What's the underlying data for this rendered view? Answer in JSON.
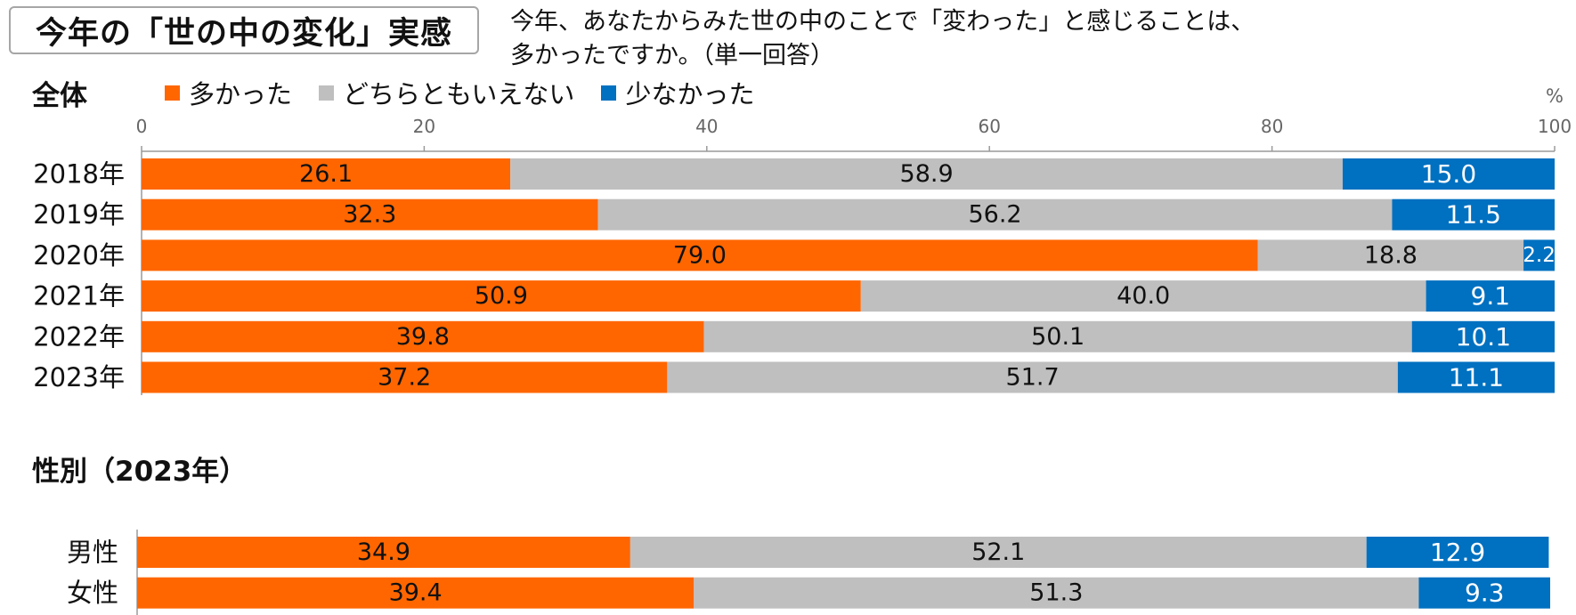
{
  "title": "今年の「世の中の変化」実感",
  "question": "今年、あなたからみた世の中のことで「変わった」と感じることは、\n多かったですか。（単一回答）",
  "colors": {
    "多かった": "#ff6600",
    "どちらともいえない": "#bfbfbf",
    "少なかった": "#0070c0"
  },
  "chart_data": [
    {
      "type": "bar",
      "orientation": "horizontal",
      "stacked": true,
      "title": "全体",
      "unit": "%",
      "xlim": [
        0,
        100
      ],
      "xticks": [
        "0",
        "20",
        "40",
        "60",
        "80",
        "100"
      ],
      "legend": "top-left",
      "categories": [
        "2018年",
        "2019年",
        "2020年",
        "2021年",
        "2022年",
        "2023年"
      ],
      "series": [
        {
          "name": "多かった",
          "values": [
            26.1,
            32.3,
            79.0,
            50.9,
            39.8,
            37.2
          ],
          "labels": [
            "26.1",
            "32.3",
            "79.0",
            "50.9",
            "39.8",
            "37.2"
          ]
        },
        {
          "name": "どちらともいえない",
          "values": [
            58.9,
            56.2,
            18.8,
            40.0,
            50.1,
            51.7
          ],
          "labels": [
            "58.9",
            "56.2",
            "18.8",
            "40.0",
            "50.1",
            "51.7"
          ]
        },
        {
          "name": "少なかった",
          "values": [
            15.0,
            11.5,
            2.2,
            9.1,
            10.1,
            11.1
          ],
          "labels": [
            "15.0",
            "11.5",
            "2.2",
            "9.1",
            "10.1",
            "11.1"
          ]
        }
      ]
    },
    {
      "type": "bar",
      "orientation": "horizontal",
      "stacked": true,
      "title": "性別（2023年）",
      "xlim": [
        0,
        100
      ],
      "categories": [
        "男性",
        "女性"
      ],
      "series": [
        {
          "name": "多かった",
          "values": [
            34.9,
            39.4
          ],
          "labels": [
            "34.9",
            "39.4"
          ]
        },
        {
          "name": "どちらともいえない",
          "values": [
            52.1,
            51.3
          ],
          "labels": [
            "52.1",
            "51.3"
          ]
        },
        {
          "name": "少なかった",
          "values": [
            12.9,
            9.3
          ],
          "labels": [
            "12.9",
            "9.3"
          ]
        }
      ]
    }
  ]
}
